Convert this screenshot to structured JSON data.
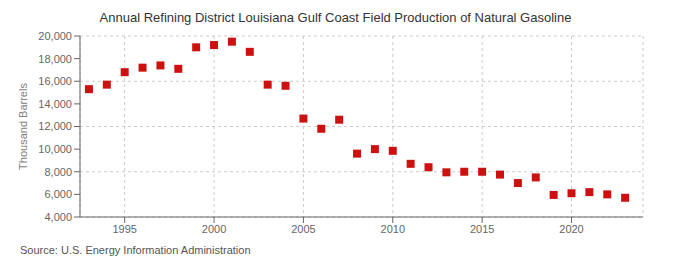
{
  "chart_data": {
    "type": "scatter",
    "title": "Annual Refining District Louisiana Gulf Coast Field Production of Natural Gasoline",
    "ylabel": "Thousand Barrels",
    "annotations": [
      "Source: U.S. Energy Information Administration"
    ],
    "x": [
      1993,
      1994,
      1995,
      1996,
      1997,
      1998,
      1999,
      2000,
      2001,
      2002,
      2003,
      2004,
      2005,
      2006,
      2007,
      2008,
      2009,
      2010,
      2011,
      2012,
      2013,
      2014,
      2015,
      2016,
      2017,
      2018,
      2019,
      2020,
      2021,
      2022,
      2023
    ],
    "values": [
      15300,
      15700,
      16800,
      17200,
      17400,
      17100,
      19000,
      19200,
      19500,
      18600,
      15700,
      15600,
      12700,
      11800,
      12600,
      9600,
      10000,
      9850,
      8700,
      8400,
      7950,
      8000,
      8000,
      7750,
      7000,
      7500,
      5950,
      6100,
      6200,
      6000,
      5700
    ],
    "color": "#cc1111",
    "marker": "square",
    "xlim": [
      1992.5,
      2024
    ],
    "xticks": [
      1995,
      2000,
      2005,
      2010,
      2015,
      2020
    ],
    "ylim": [
      4000,
      20000
    ],
    "yticks": [
      {
        "value": 4000,
        "label": "4,000"
      },
      {
        "value": 6000,
        "label": "6,000"
      },
      {
        "value": 8000,
        "label": "8,000"
      },
      {
        "value": 10000,
        "label": "10,000"
      },
      {
        "value": 12000,
        "label": "12,000"
      },
      {
        "value": 14000,
        "label": "14,000"
      },
      {
        "value": 16000,
        "label": "16,000"
      },
      {
        "value": 18000,
        "label": "18,000"
      },
      {
        "value": 20000,
        "label": "20,000"
      }
    ],
    "grid": true
  }
}
